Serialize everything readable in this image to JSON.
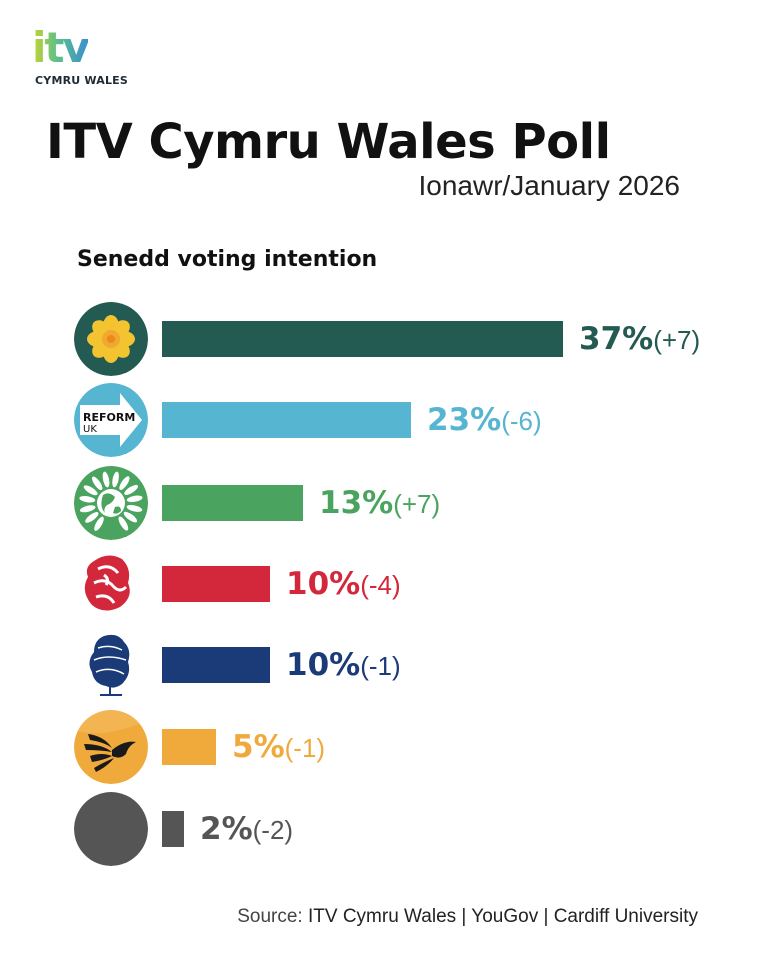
{
  "logo": {
    "word": "itv",
    "sub": "CYMRU WALES"
  },
  "header": {
    "title": "ITV Cymru Wales Poll",
    "subtitle": "Ionawr/January 2026"
  },
  "chart_data": {
    "type": "bar",
    "orientation": "horizontal",
    "title": "Senedd voting intention",
    "categories": [
      "Plaid Cymru",
      "Reform UK",
      "Green",
      "Labour",
      "Conservative",
      "Liberal Democrats",
      "Other"
    ],
    "values": [
      37,
      23,
      13,
      10,
      10,
      5,
      2
    ],
    "changes": [
      "+7",
      "-6",
      "+7",
      "-4",
      "-1",
      "-1",
      "-2"
    ],
    "unit": "%",
    "colors": [
      "#235a51",
      "#56b5d0",
      "#4aa35e",
      "#d3283c",
      "#1b3a78",
      "#f0a93b",
      "#555555"
    ],
    "xlabel": "",
    "ylabel": "",
    "grid": false,
    "legend": "icons"
  },
  "rows": [
    {
      "value": "37%",
      "change": "(+7)",
      "icon": "daffodil-icon"
    },
    {
      "value": "23%",
      "change": "(-6)",
      "icon": "reform-arrow-icon",
      "icon_text_1": "REFORM",
      "icon_text_2": "UK"
    },
    {
      "value": "13%",
      "change": "(+7)",
      "icon": "green-earth-icon"
    },
    {
      "value": "10%",
      "change": "(-4)",
      "icon": "rose-icon"
    },
    {
      "value": "10%",
      "change": "(-1)",
      "icon": "tree-icon"
    },
    {
      "value": "5%",
      "change": "(-1)",
      "icon": "bird-icon"
    },
    {
      "value": "2%",
      "change": "(-2)",
      "icon": "grey-circle-icon"
    }
  ],
  "source": {
    "label": "Source:",
    "text": " ITV Cymru Wales | YouGov | Cardiff University"
  }
}
